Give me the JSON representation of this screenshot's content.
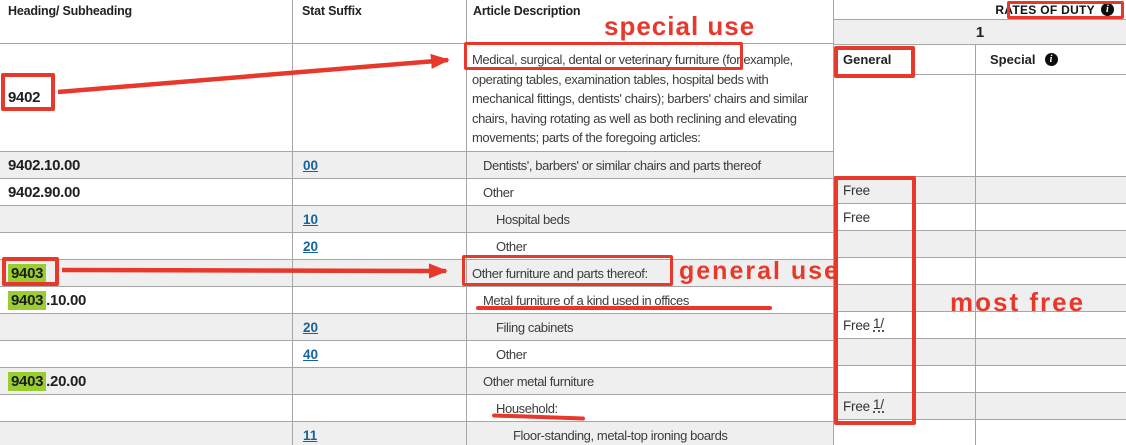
{
  "header": {
    "heading_col": "Heading/ Subheading",
    "stat_col": "Stat Suffix",
    "article_col": "Article Description",
    "rates_title": "RATES OF DUTY",
    "rates_unit": "1",
    "general_col": "General",
    "special_col": "Special",
    "info_icon": "info-icon"
  },
  "colors": {
    "annotation_red": "#e8382b",
    "highlight_green": "#9acd32",
    "link_blue": "#15639e",
    "row_gray": "#efefef",
    "border_gray": "#a6a6a6"
  },
  "left_rows": [
    {
      "hl": "",
      "num": "9402",
      "stat": "",
      "desc": "Medical, surgical, dental or veterinary furniture (for example, operating tables, examination tables, hospital beds with mechanical fittings, dentists' chairs); barbers' chairs and similar chairs, having rotating as well as both reclining and elevating movements; parts of the foregoing articles:",
      "indent": 0,
      "shade": "white",
      "tall": true
    },
    {
      "hl": "",
      "num": "9402.10.00",
      "stat": "00",
      "desc": "Dentists', barbers' or similar chairs and parts thereof",
      "indent": 1,
      "shade": "gray",
      "tall": false
    },
    {
      "hl": "",
      "num": "9402.90.00",
      "stat": "",
      "desc": "Other",
      "indent": 1,
      "shade": "white",
      "tall": false
    },
    {
      "hl": "",
      "num": "",
      "stat": "10",
      "desc": "Hospital beds",
      "indent": 2,
      "shade": "gray",
      "tall": false
    },
    {
      "hl": "",
      "num": "",
      "stat": "20",
      "desc": "Other",
      "indent": 2,
      "shade": "white",
      "tall": false
    },
    {
      "hl": "9403",
      "num": "",
      "stat": "",
      "desc": "Other furniture and parts thereof:",
      "indent": 0,
      "shade": "gray",
      "tall": false
    },
    {
      "hl": "9403",
      "num": ".10.00",
      "stat": "",
      "desc": "Metal furniture of a kind used in offices",
      "indent": 1,
      "shade": "white",
      "tall": false
    },
    {
      "hl": "",
      "num": "",
      "stat": "20",
      "desc": "Filing cabinets",
      "indent": 2,
      "shade": "gray",
      "tall": false
    },
    {
      "hl": "",
      "num": "",
      "stat": "40",
      "desc": "Other",
      "indent": 2,
      "shade": "white",
      "tall": false
    },
    {
      "hl": "9403",
      "num": ".20.00",
      "stat": "",
      "desc": "Other metal furniture",
      "indent": 1,
      "shade": "gray",
      "tall": false
    },
    {
      "hl": "",
      "num": "",
      "stat": "",
      "desc": "Household:",
      "indent": 2,
      "shade": "white",
      "tall": false
    },
    {
      "hl": "",
      "num": "",
      "stat": "11",
      "desc": "Floor-standing, metal-top ironing boards",
      "indent": 3,
      "shade": "gray",
      "tall": false
    }
  ],
  "rates_rows": [
    {
      "general": "Free",
      "fn": "",
      "special": "",
      "shade": "gray"
    },
    {
      "general": "Free",
      "fn": "",
      "special": "",
      "shade": "white"
    },
    {
      "general": "",
      "fn": "",
      "special": "",
      "shade": "gray"
    },
    {
      "general": "",
      "fn": "",
      "special": "",
      "shade": "white"
    },
    {
      "general": "",
      "fn": "",
      "special": "",
      "shade": "gray"
    },
    {
      "general": "Free",
      "fn": "1/",
      "special": "",
      "shade": "white"
    },
    {
      "general": "",
      "fn": "",
      "special": "",
      "shade": "gray"
    },
    {
      "general": "",
      "fn": "",
      "special": "",
      "shade": "white"
    },
    {
      "general": "Free",
      "fn": "1/",
      "special": "",
      "shade": "gray"
    },
    {
      "general": "",
      "fn": "",
      "special": "",
      "shade": "white"
    }
  ],
  "annotations": {
    "special_use": "special use",
    "general_use": "general use",
    "most_free": "most free"
  }
}
